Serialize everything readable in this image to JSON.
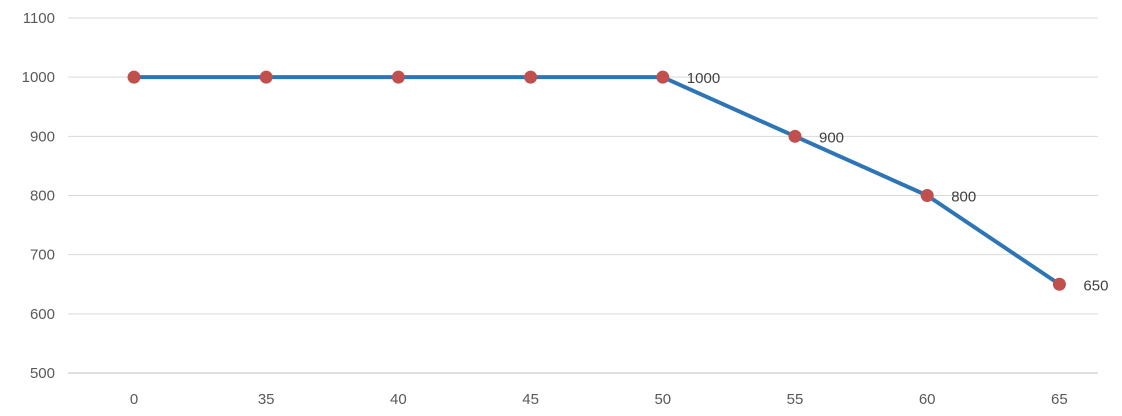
{
  "chart_data": {
    "type": "line",
    "title": "",
    "xlabel": "",
    "ylabel": "",
    "categories": [
      "0",
      "35",
      "40",
      "45",
      "50",
      "55",
      "60",
      "65"
    ],
    "series": [
      {
        "values": [
          1000,
          1000,
          1000,
          1000,
          1000,
          900,
          800,
          650
        ],
        "line_color": "#2e75b6",
        "marker_color": "#c0504d",
        "data_labels": [
          null,
          null,
          null,
          null,
          "1000",
          "900",
          "800",
          "650"
        ]
      }
    ],
    "ylim": [
      500,
      1100
    ],
    "yticks": [
      500,
      600,
      700,
      800,
      900,
      1000,
      1100
    ],
    "ytick_labels": [
      "500",
      "600",
      "700",
      "800",
      "900",
      "1000",
      "1100"
    ],
    "grid": "horizontal",
    "legend": "none"
  }
}
